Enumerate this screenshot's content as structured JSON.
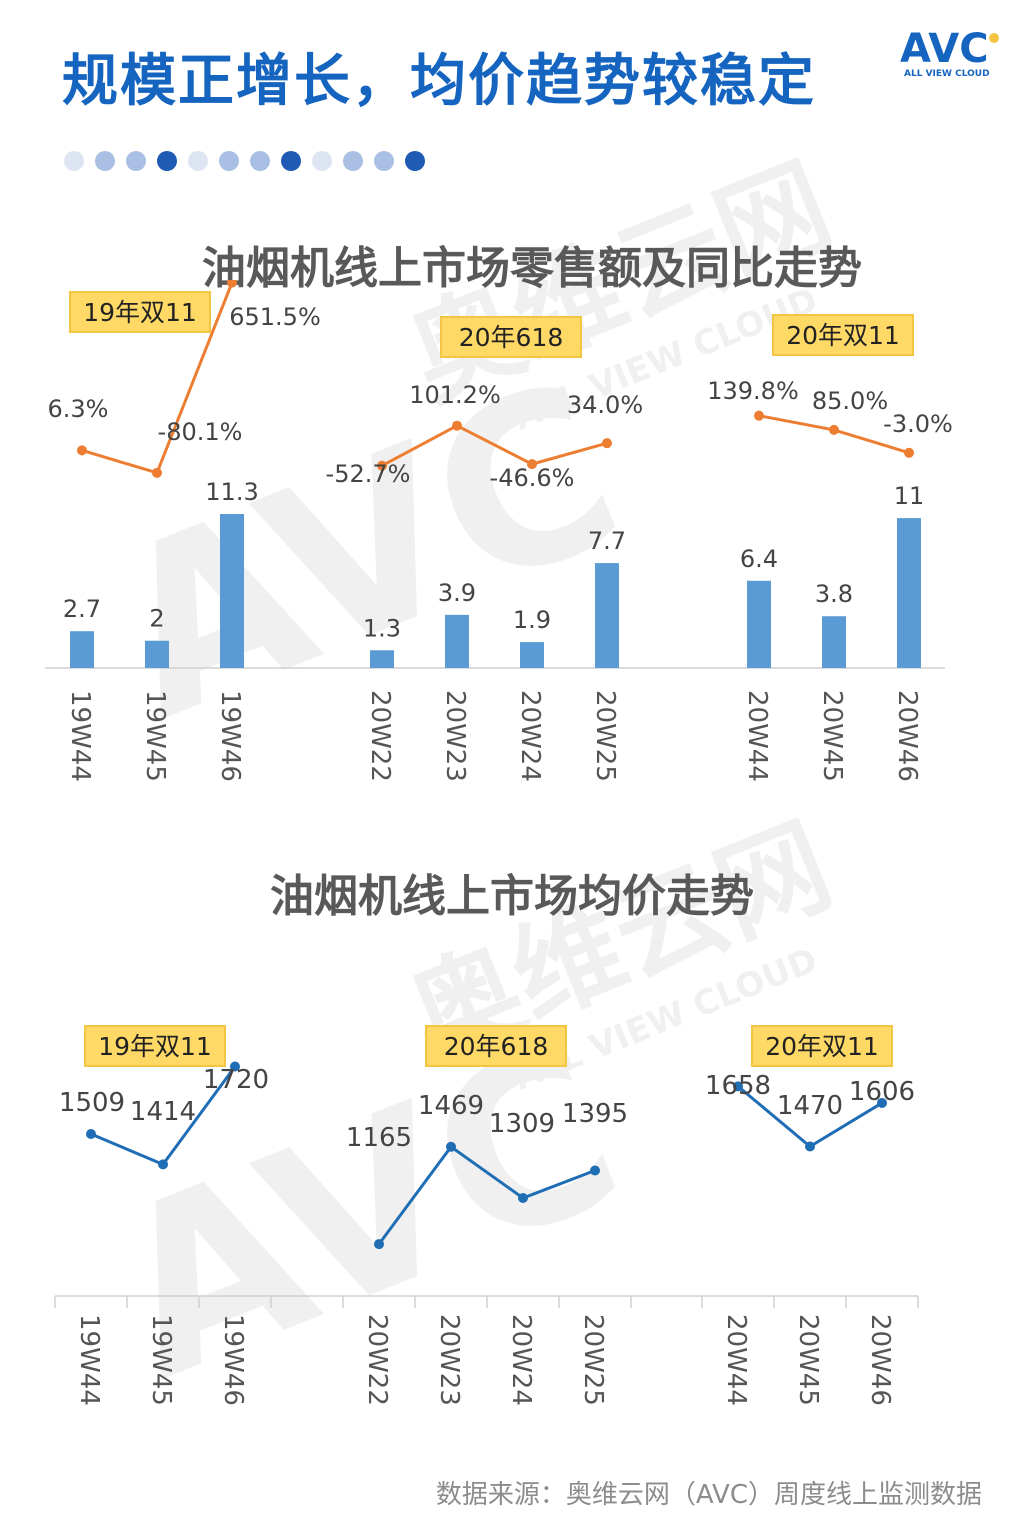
{
  "header": {
    "title": "规模正增长，均价趋势较稳定",
    "logo_text": "AVC",
    "logo_subtext": "ALL VIEW CLOUD"
  },
  "colors": {
    "title_blue": "#1565c0",
    "bar_blue": "#5b9bd5",
    "line_orange": "#ed7d31",
    "line_blue": "#1f6db5",
    "badge_fill": "#ffd966",
    "badge_border": "#f4c542",
    "dot_light": "#dde5f2",
    "dot_mid": "#a9c0e4",
    "dot_dark": "#1f5bb5"
  },
  "decor": {
    "dots": [
      "light",
      "mid",
      "mid",
      "dark",
      "light",
      "mid",
      "mid",
      "dark",
      "light",
      "mid",
      "mid",
      "dark"
    ]
  },
  "watermark": {
    "brand": "AVC",
    "cn": "奥维云网",
    "en": "ALL VIEW CLOUD"
  },
  "chart_data": [
    {
      "type": "bar",
      "title": "油烟机线上市场零售额及同比走势",
      "groups": [
        {
          "badge": "19年双11",
          "categories": [
            "19W44",
            "19W45",
            "19W46"
          ]
        },
        {
          "badge": "20年618",
          "categories": [
            "20W22",
            "20W23",
            "20W24",
            "20W25"
          ]
        },
        {
          "badge": "20年双11",
          "categories": [
            "20W44",
            "20W45",
            "20W46"
          ]
        }
      ],
      "series": [
        {
          "values": [
            2.7,
            2.0,
            11.3,
            1.3,
            3.9,
            1.9,
            7.7,
            6.4,
            3.8,
            11.0
          ]
        },
        {
          "values": [
            6.3,
            -80.1,
            651.5,
            -52.7,
            101.2,
            -46.6,
            34.0,
            139.8,
            85.0,
            -3.0
          ],
          "labels": [
            "6.3%",
            "-80.1%",
            "651.5%",
            "-52.7%",
            "101.2%",
            "-46.6%",
            "34.0%",
            "139.8%",
            "85.0%",
            "-3.0%"
          ]
        }
      ],
      "ylim": [
        0,
        12
      ],
      "legend": "none",
      "grid": false
    },
    {
      "type": "line",
      "title": "油烟机线上市场均价走势",
      "groups": [
        {
          "badge": "19年双11",
          "categories": [
            "19W44",
            "19W45",
            "19W46"
          ]
        },
        {
          "badge": "20年618",
          "categories": [
            "20W22",
            "20W23",
            "20W24",
            "20W25"
          ]
        },
        {
          "badge": "20年双11",
          "categories": [
            "20W44",
            "20W45",
            "20W46"
          ]
        }
      ],
      "series": [
        {
          "values": [
            1509,
            1414,
            1720,
            1165,
            1469,
            1309,
            1395,
            1658,
            1470,
            1606
          ]
        }
      ],
      "ylim": [
        1000,
        1800
      ],
      "legend": "none",
      "grid": false
    }
  ],
  "footer": {
    "source": "数据来源：奥维云网（AVC）周度线上监测数据"
  }
}
